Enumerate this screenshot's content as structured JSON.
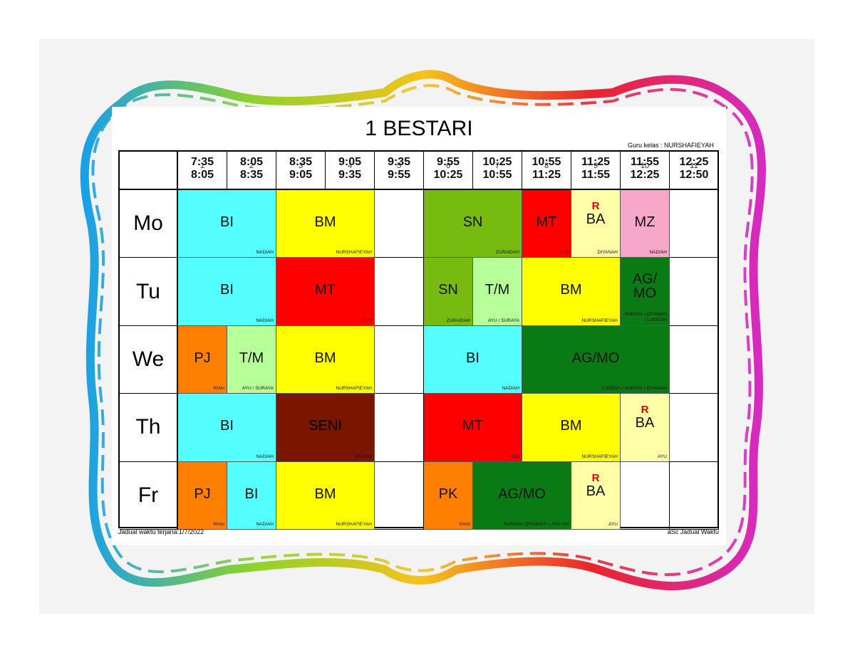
{
  "title": "1 BESTARI",
  "teacher_label": "Guru kelas : NURSHAFIEYAH",
  "footer": {
    "left": "Jadual waktu terjana:1/7/2022",
    "right": "aSc Jadual Waktu"
  },
  "periods": [
    {
      "num": "1",
      "start": "7:35",
      "end": "8:05"
    },
    {
      "num": "2",
      "start": "8:05",
      "end": "8:35"
    },
    {
      "num": "3",
      "start": "8:35",
      "end": "9:05"
    },
    {
      "num": "4",
      "start": "9:05",
      "end": "9:35"
    },
    {
      "num": "5",
      "start": "9:35",
      "end": "9:55"
    },
    {
      "num": "6",
      "start": "9:55",
      "end": "10:25"
    },
    {
      "num": "7",
      "start": "10:25",
      "end": "10:55"
    },
    {
      "num": "8",
      "start": "10:55",
      "end": "11:25"
    },
    {
      "num": "9",
      "start": "11:25",
      "end": "11:55"
    },
    {
      "num": "10",
      "start": "11:55",
      "end": "12:25"
    },
    {
      "num": "11",
      "start": "12:25",
      "end": "12:50"
    }
  ],
  "days": [
    "Mo",
    "Tu",
    "We",
    "Th",
    "Fr"
  ],
  "colors": {
    "BI": "#55ffff",
    "BM": "#ffff00",
    "SN": "#77bb11",
    "MT": "#ff0000",
    "BA": "#ffffa8",
    "MZ": "#f7a8c8",
    "T/M": "#b7ff99",
    "AG/MO": "#0a7a14",
    "PJ": "#ff7f00",
    "SENI": "#7a1500",
    "PK": "#ff7f00"
  },
  "lessons": [
    {
      "day": 0,
      "start": 0,
      "span": 2,
      "subject": "BI",
      "teacher": "NADIAH"
    },
    {
      "day": 0,
      "start": 2,
      "span": 2,
      "subject": "BM",
      "teacher": "NURSHAFIEYAH"
    },
    {
      "day": 0,
      "start": 5,
      "span": 2,
      "subject": "SN",
      "teacher": "ZURAIDAH"
    },
    {
      "day": 0,
      "start": 7,
      "span": 1,
      "subject": "MT",
      "teacher": "YEO"
    },
    {
      "day": 0,
      "start": 8,
      "span": 1,
      "subject": "BA",
      "teacher": "DIYANAH",
      "mark": "R"
    },
    {
      "day": 0,
      "start": 9,
      "span": 1,
      "subject": "MZ",
      "teacher": "NADIAH"
    },
    {
      "day": 1,
      "start": 0,
      "span": 2,
      "subject": "BI",
      "teacher": "NADIAH"
    },
    {
      "day": 1,
      "start": 2,
      "span": 2,
      "subject": "MT",
      "teacher": "YEO"
    },
    {
      "day": 1,
      "start": 5,
      "span": 1,
      "subject": "SN",
      "teacher": "ZURAIDAH"
    },
    {
      "day": 1,
      "start": 6,
      "span": 1,
      "subject": "T/M",
      "teacher": "AYU / SURAYA"
    },
    {
      "day": 1,
      "start": 7,
      "span": 2,
      "subject": "BM",
      "teacher": "NURSHAFIEYAH"
    },
    {
      "day": 1,
      "start": 9,
      "span": 1,
      "subject": "AG/\nMO",
      "teacher": "SURAYA / DIYANAH / LOGESH",
      "multi": true
    },
    {
      "day": 2,
      "start": 0,
      "span": 1,
      "subject": "PJ",
      "teacher": "KHAI"
    },
    {
      "day": 2,
      "start": 1,
      "span": 1,
      "subject": "T/M",
      "teacher": "AYU / SURAYA"
    },
    {
      "day": 2,
      "start": 2,
      "span": 2,
      "subject": "BM",
      "teacher": "NURSHAFIEYAH"
    },
    {
      "day": 2,
      "start": 5,
      "span": 2,
      "subject": "BI",
      "teacher": "NADIAH"
    },
    {
      "day": 2,
      "start": 7,
      "span": 3,
      "subject": "AG/MO",
      "teacher": "LOGESH / SURAYA / DIYANAH"
    },
    {
      "day": 3,
      "start": 0,
      "span": 2,
      "subject": "BI",
      "teacher": "NADIAH"
    },
    {
      "day": 3,
      "start": 2,
      "span": 2,
      "subject": "SENI",
      "teacher": "NADIAH"
    },
    {
      "day": 3,
      "start": 5,
      "span": 2,
      "subject": "MT",
      "teacher": "YEO"
    },
    {
      "day": 3,
      "start": 7,
      "span": 2,
      "subject": "BM",
      "teacher": "NURSHAFIEYAH"
    },
    {
      "day": 3,
      "start": 9,
      "span": 1,
      "subject": "BA",
      "teacher": "AYU",
      "mark": "R"
    },
    {
      "day": 4,
      "start": 0,
      "span": 1,
      "subject": "PJ",
      "teacher": "KHAI"
    },
    {
      "day": 4,
      "start": 1,
      "span": 1,
      "subject": "BI",
      "teacher": "NADIAH"
    },
    {
      "day": 4,
      "start": 2,
      "span": 2,
      "subject": "BM",
      "teacher": "NURSHAFIEYAH"
    },
    {
      "day": 4,
      "start": 5,
      "span": 1,
      "subject": "PK",
      "teacher": "KHAI"
    },
    {
      "day": 4,
      "start": 6,
      "span": 2,
      "subject": "AG/MO",
      "teacher": "SURAYA / DIYANAH / LOGESH"
    },
    {
      "day": 4,
      "start": 8,
      "span": 1,
      "subject": "BA",
      "teacher": "AYU",
      "mark": "R"
    }
  ]
}
